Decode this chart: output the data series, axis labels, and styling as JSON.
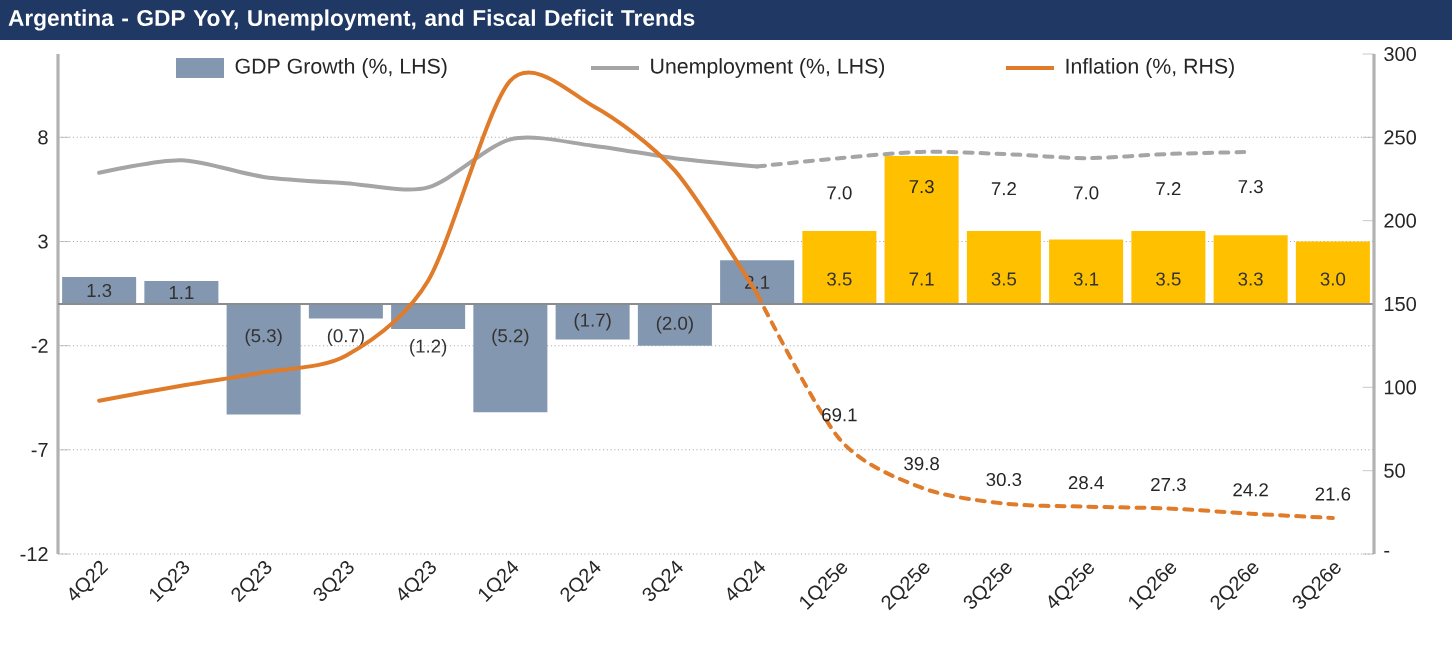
{
  "chart_data": {
    "type": "bar",
    "title": "Argentina - GDP YoY, Unemployment, and Fiscal Deficit Trends",
    "categories": [
      "4Q22",
      "1Q23",
      "2Q23",
      "3Q23",
      "4Q23",
      "1Q24",
      "2Q24",
      "3Q24",
      "4Q24",
      "1Q25e",
      "2Q25e",
      "3Q25e",
      "4Q25e",
      "1Q26e",
      "2Q26e",
      "3Q26e"
    ],
    "series": [
      {
        "name": "GDP Growth (%, LHS)",
        "colors": [
          "#8497b0",
          "#8497b0",
          "#8497b0",
          "#8497b0",
          "#8497b0",
          "#8497b0",
          "#8497b0",
          "#8497b0",
          "#8497b0",
          "#ffc000",
          "#ffc000",
          "#ffc000",
          "#ffc000",
          "#ffc000",
          "#ffc000",
          "#ffc000"
        ],
        "values": [
          1.3,
          1.1,
          -5.3,
          -0.7,
          -1.2,
          -5.2,
          -1.7,
          -2.0,
          2.1,
          3.5,
          7.1,
          3.5,
          3.1,
          3.5,
          3.3,
          3.0
        ],
        "value_labels": [
          "1.3",
          "1.1",
          "(5.3)",
          "(0.7)",
          "(1.2)",
          "(5.2)",
          "(1.7)",
          "(2.0)",
          "2.1",
          "3.5",
          "7.1",
          "3.5",
          "3.1",
          "3.5",
          "3.3",
          "3.0"
        ]
      },
      {
        "name": "Unemployment (%, LHS)",
        "type": "line",
        "color": "#a5a5a5",
        "line_style": "solid",
        "values": [
          6.3,
          6.9,
          6.1,
          5.8,
          5.6,
          7.9,
          7.6,
          7.0,
          6.6,
          null,
          null,
          null,
          null,
          null,
          null,
          null
        ]
      },
      {
        "type": "line",
        "color": "#a5a5a5",
        "line_style": "dashed",
        "values": [
          null,
          null,
          null,
          null,
          null,
          null,
          null,
          null,
          6.6,
          7.0,
          7.3,
          7.2,
          7.0,
          7.2,
          7.3,
          null
        ],
        "value_labels": [
          null,
          null,
          null,
          null,
          null,
          null,
          null,
          null,
          null,
          "7.0",
          "7.3",
          "7.2",
          "7.0",
          "7.2",
          "7.3",
          null
        ]
      },
      {
        "name": "Inflation (%, RHS)",
        "type": "line",
        "axis": "y2",
        "color": "#e07b2a",
        "line_style": "solid",
        "values": [
          92,
          101,
          109,
          119,
          164,
          284,
          269,
          230,
          156,
          null,
          null,
          null,
          null,
          null,
          null,
          null
        ]
      },
      {
        "type": "line",
        "axis": "y2",
        "color": "#e07b2a",
        "line_style": "dashed",
        "values": [
          null,
          null,
          null,
          null,
          null,
          null,
          null,
          null,
          156,
          69.1,
          39.8,
          30.3,
          28.4,
          27.3,
          24.2,
          21.6
        ],
        "value_labels": [
          null,
          null,
          null,
          null,
          null,
          null,
          null,
          null,
          null,
          "69.1",
          "39.8",
          "30.3",
          "28.4",
          "27.3",
          "24.2",
          "21.6"
        ]
      }
    ],
    "ylim": [
      -12,
      12
    ],
    "yticks": [
      -12,
      -7,
      -2,
      3,
      8
    ],
    "y2lim": [
      0,
      300
    ],
    "y2ticks": [
      {
        "value": 0,
        "label": "-"
      },
      50,
      100,
      150,
      200,
      250,
      300
    ],
    "grid": "y",
    "legend": "top"
  }
}
